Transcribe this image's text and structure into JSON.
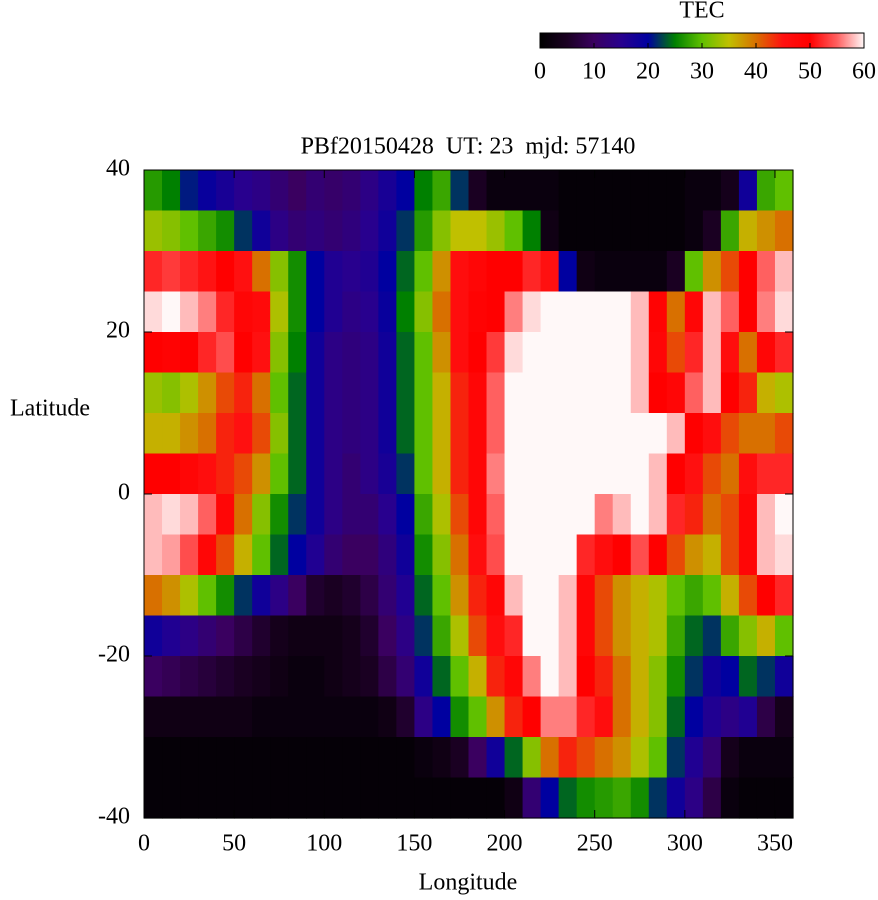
{
  "chart_data": {
    "type": "heatmap",
    "title": "PBf20150428  UT: 23  mjd: 57140",
    "x_label": "Longitude",
    "y_label": "Latitude",
    "xlim": [
      0,
      360
    ],
    "ylim": [
      -40,
      40
    ],
    "xticks": [
      0,
      50,
      100,
      150,
      200,
      250,
      300,
      350
    ],
    "yticks": [
      -40,
      -20,
      0,
      20,
      40
    ],
    "colorbar": {
      "label": "TEC",
      "lim": [
        0,
        60
      ],
      "ticks": [
        0,
        10,
        20,
        30,
        40,
        50,
        60
      ],
      "colors": [
        "#000000",
        "#1a0022",
        "#3a0060",
        "#28008e",
        "#0000a0",
        "#008000",
        "#60c000",
        "#c0c000",
        "#d87000",
        "#ff1010",
        "#ff0000",
        "#ff6060",
        "#fff8f8"
      ]
    },
    "x": [
      5,
      15,
      25,
      35,
      45,
      55,
      65,
      75,
      85,
      95,
      105,
      115,
      125,
      135,
      145,
      155,
      165,
      175,
      185,
      195,
      205,
      215,
      225,
      235,
      245,
      255,
      265,
      275,
      285,
      295,
      305,
      315,
      325,
      335,
      345,
      355
    ],
    "y": [
      37.5,
      32.5,
      27.5,
      22.5,
      17.5,
      12.5,
      7.5,
      2.5,
      -2.5,
      -7.5,
      -12.5,
      -17.5,
      -22.5,
      -27.5,
      -32.5,
      -37.5
    ],
    "values": [
      [
        27,
        25,
        21,
        19,
        17,
        15,
        14,
        12,
        10,
        12,
        11,
        12,
        14,
        17,
        20,
        25,
        28,
        22,
        5,
        2,
        2,
        2,
        2,
        1,
        1,
        1,
        1,
        1,
        1,
        1,
        2,
        2,
        4,
        18,
        28,
        30
      ],
      [
        33,
        32,
        30,
        28,
        26,
        22,
        18,
        14,
        12,
        13,
        12,
        13,
        15,
        18,
        22,
        27,
        32,
        35,
        35,
        33,
        30,
        25,
        3,
        1,
        1,
        1,
        1,
        1,
        1,
        1,
        2,
        5,
        28,
        36,
        38,
        40
      ],
      [
        52,
        53,
        52,
        51,
        50,
        45,
        40,
        32,
        26,
        20,
        16,
        15,
        16,
        20,
        24,
        30,
        38,
        46,
        48,
        50,
        50,
        52,
        45,
        20,
        3,
        2,
        2,
        2,
        2,
        5,
        30,
        38,
        42,
        50,
        55,
        58
      ],
      [
        59,
        60,
        58,
        56,
        52,
        48,
        47,
        34,
        26,
        20,
        16,
        14,
        15,
        19,
        25,
        32,
        40,
        46,
        49,
        50,
        56,
        59,
        60,
        60,
        60,
        60,
        60,
        58,
        49,
        40,
        48,
        58,
        55,
        50,
        56,
        59
      ],
      [
        50,
        49,
        50,
        52,
        54,
        50,
        45,
        32,
        25,
        18,
        14,
        13,
        14,
        18,
        24,
        30,
        38,
        46,
        50,
        53,
        59,
        60,
        60,
        60,
        60,
        60,
        60,
        58,
        48,
        42,
        52,
        58,
        46,
        40,
        48,
        52
      ],
      [
        33,
        32,
        34,
        38,
        42,
        44,
        40,
        30,
        24,
        18,
        14,
        13,
        14,
        18,
        24,
        30,
        36,
        44,
        48,
        55,
        60,
        60,
        60,
        60,
        60,
        60,
        60,
        58,
        50,
        48,
        55,
        58,
        50,
        44,
        36,
        34
      ],
      [
        36,
        36,
        38,
        40,
        44,
        45,
        42,
        32,
        24,
        18,
        14,
        13,
        14,
        18,
        24,
        30,
        36,
        44,
        48,
        55,
        60,
        60,
        60,
        60,
        60,
        60,
        60,
        60,
        60,
        58,
        50,
        46,
        42,
        40,
        40,
        42
      ],
      [
        50,
        50,
        48,
        46,
        44,
        42,
        38,
        30,
        24,
        18,
        14,
        12,
        14,
        17,
        22,
        30,
        36,
        44,
        48,
        56,
        60,
        60,
        60,
        60,
        60,
        60,
        60,
        60,
        58,
        50,
        45,
        42,
        40,
        46,
        52,
        52
      ],
      [
        58,
        59,
        58,
        55,
        48,
        40,
        32,
        26,
        22,
        18,
        14,
        12,
        12,
        15,
        20,
        28,
        34,
        42,
        48,
        55,
        60,
        60,
        60,
        60,
        60,
        56,
        58,
        60,
        58,
        52,
        44,
        40,
        42,
        48,
        58,
        60
      ],
      [
        58,
        57,
        54,
        48,
        42,
        36,
        30,
        24,
        20,
        16,
        12,
        10,
        10,
        13,
        18,
        26,
        32,
        40,
        46,
        54,
        60,
        60,
        60,
        60,
        52,
        46,
        50,
        54,
        50,
        42,
        38,
        36,
        42,
        48,
        58,
        59
      ],
      [
        40,
        38,
        34,
        30,
        26,
        22,
        18,
        14,
        10,
        6,
        5,
        6,
        8,
        12,
        16,
        24,
        30,
        38,
        44,
        48,
        58,
        60,
        60,
        58,
        48,
        42,
        38,
        36,
        34,
        30,
        28,
        30,
        36,
        42,
        50,
        52
      ],
      [
        18,
        16,
        14,
        12,
        10,
        8,
        6,
        4,
        3,
        3,
        3,
        4,
        6,
        10,
        14,
        22,
        28,
        34,
        42,
        46,
        52,
        60,
        60,
        58,
        48,
        42,
        38,
        36,
        34,
        28,
        24,
        22,
        28,
        32,
        36,
        30
      ],
      [
        10,
        9,
        8,
        7,
        6,
        5,
        4,
        3,
        2,
        2,
        3,
        4,
        5,
        8,
        12,
        18,
        24,
        30,
        36,
        44,
        48,
        56,
        60,
        58,
        50,
        44,
        40,
        36,
        32,
        26,
        22,
        18,
        20,
        24,
        22,
        18
      ],
      [
        3,
        3,
        3,
        3,
        3,
        3,
        2,
        2,
        2,
        2,
        2,
        2,
        2,
        3,
        6,
        14,
        20,
        26,
        30,
        38,
        44,
        50,
        56,
        56,
        52,
        46,
        40,
        36,
        32,
        24,
        20,
        16,
        14,
        16,
        8,
        4
      ],
      [
        1,
        1,
        1,
        1,
        1,
        1,
        1,
        1,
        1,
        1,
        1,
        1,
        1,
        1,
        1,
        2,
        3,
        5,
        10,
        18,
        24,
        32,
        40,
        44,
        42,
        40,
        38,
        34,
        30,
        22,
        16,
        12,
        4,
        2,
        2,
        2
      ],
      [
        1,
        1,
        1,
        1,
        1,
        1,
        1,
        1,
        1,
        1,
        1,
        1,
        1,
        1,
        1,
        1,
        1,
        1,
        1,
        1,
        3,
        12,
        20,
        24,
        26,
        27,
        28,
        26,
        22,
        18,
        14,
        8,
        2,
        1,
        1,
        1
      ]
    ]
  }
}
